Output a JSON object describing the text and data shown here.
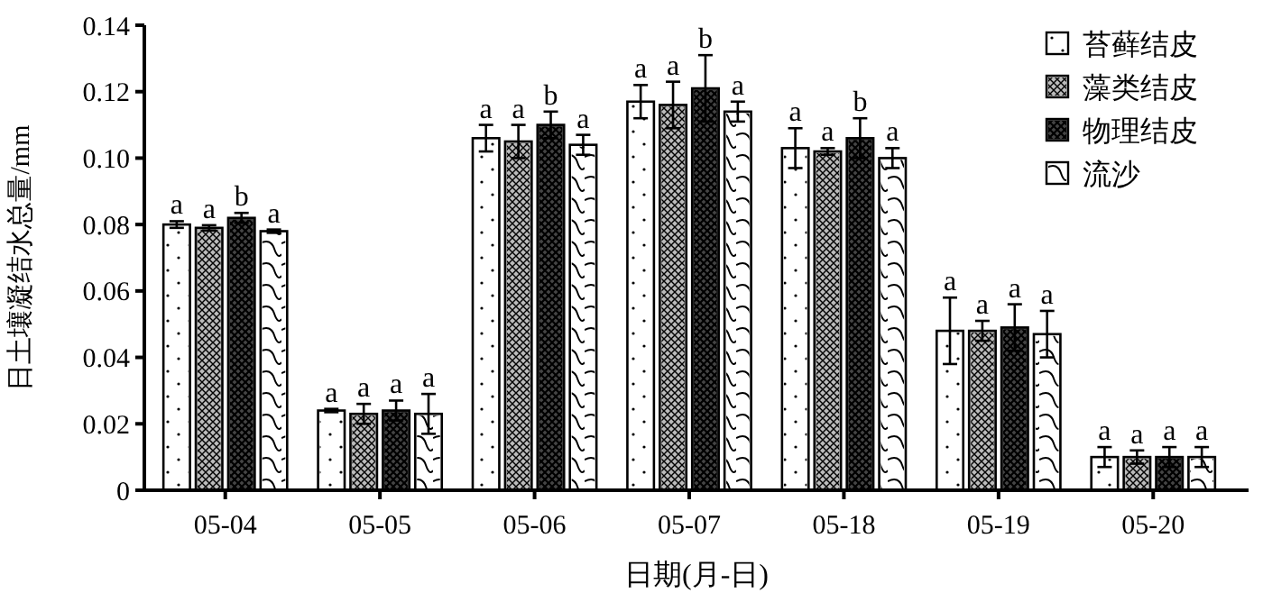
{
  "chart_data": {
    "type": "bar",
    "xlabel": "日期(月-日)",
    "ylabel": "日土壤凝结水总量/mm",
    "categories": [
      "05-04",
      "05-05",
      "05-06",
      "05-07",
      "05-18",
      "05-19",
      "05-20"
    ],
    "series": [
      {
        "name": "苔藓结皮",
        "color": "#ffffff",
        "values": [
          0.08,
          0.024,
          0.106,
          0.117,
          0.103,
          0.048,
          0.01
        ],
        "errors": [
          0.001,
          0.0005,
          0.004,
          0.005,
          0.006,
          0.01,
          0.003
        ],
        "value_labels": [
          "a",
          "a",
          "a",
          "a",
          "a",
          "a",
          "a"
        ]
      },
      {
        "name": "藻类结皮",
        "color": "#bbbbbb",
        "values": [
          0.079,
          0.023,
          0.105,
          0.116,
          0.102,
          0.048,
          0.01
        ],
        "errors": [
          0.0008,
          0.003,
          0.005,
          0.007,
          0.001,
          0.003,
          0.002
        ],
        "value_labels": [
          "a",
          "a",
          "a",
          "a",
          "a",
          "a",
          "a"
        ]
      },
      {
        "name": "物理结皮",
        "color": "#444444",
        "values": [
          0.082,
          0.024,
          0.11,
          0.121,
          0.106,
          0.049,
          0.01
        ],
        "errors": [
          0.0015,
          0.003,
          0.004,
          0.01,
          0.006,
          0.007,
          0.003
        ],
        "value_labels": [
          "b",
          "a",
          "b",
          "b",
          "b",
          "a",
          "a"
        ]
      },
      {
        "name": "流沙",
        "color": "#ffffff",
        "values": [
          0.078,
          0.023,
          0.104,
          0.114,
          0.1,
          0.047,
          0.01
        ],
        "errors": [
          0.0005,
          0.006,
          0.003,
          0.003,
          0.003,
          0.007,
          0.003
        ],
        "value_labels": [
          "a",
          "a",
          "a",
          "a",
          "a",
          "a",
          "a"
        ]
      }
    ],
    "ylim": [
      0,
      0.14
    ],
    "yticks": [
      0,
      {
        "value": 0.02,
        "label": "0.02"
      },
      {
        "value": 0.04,
        "label": "0.04"
      },
      {
        "value": 0.06,
        "label": "0.06"
      },
      {
        "value": 0.08,
        "label": "0.08"
      },
      {
        "value": 0.1,
        "label": "0.10"
      },
      {
        "value": 0.12,
        "label": "0.12"
      },
      {
        "value": 0.14,
        "label": "0.14"
      }
    ],
    "legend": "top right",
    "grid": false
  }
}
